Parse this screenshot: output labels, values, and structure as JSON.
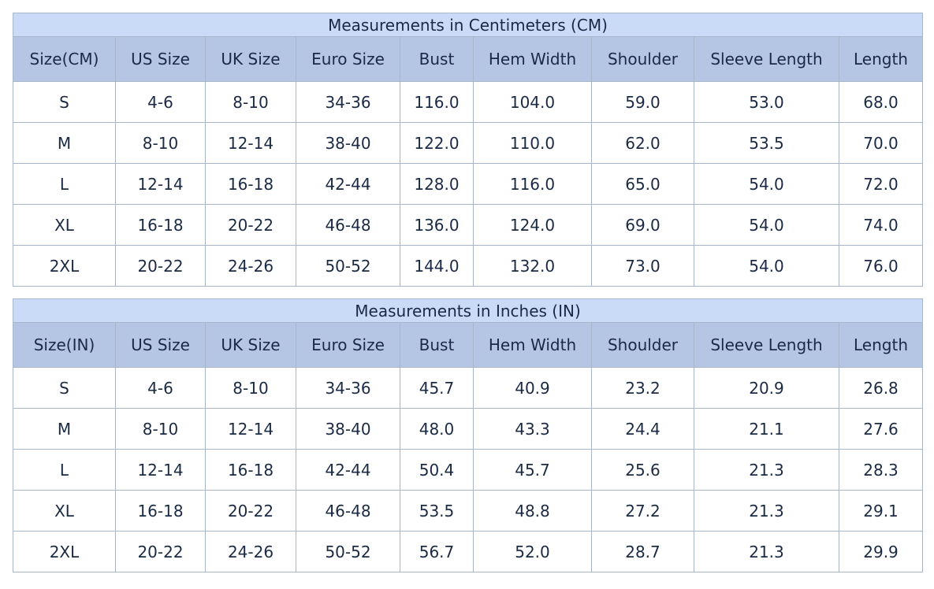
{
  "tables": [
    {
      "title": "Measurements in Centimeters (CM)",
      "headers": [
        "Size(CM)",
        "US Size",
        "UK Size",
        "Euro Size",
        "Bust",
        "Hem Width",
        "Shoulder",
        "Sleeve Length",
        "Length"
      ],
      "rows": [
        [
          "S",
          "4-6",
          "8-10",
          "34-36",
          "116.0",
          "104.0",
          "59.0",
          "53.0",
          "68.0"
        ],
        [
          "M",
          "8-10",
          "12-14",
          "38-40",
          "122.0",
          "110.0",
          "62.0",
          "53.5",
          "70.0"
        ],
        [
          "L",
          "12-14",
          "16-18",
          "42-44",
          "128.0",
          "116.0",
          "65.0",
          "54.0",
          "72.0"
        ],
        [
          "XL",
          "16-18",
          "20-22",
          "46-48",
          "136.0",
          "124.0",
          "69.0",
          "54.0",
          "74.0"
        ],
        [
          "2XL",
          "20-22",
          "24-26",
          "50-52",
          "144.0",
          "132.0",
          "73.0",
          "54.0",
          "76.0"
        ]
      ]
    },
    {
      "title": "Measurements in Inches (IN)",
      "headers": [
        "Size(IN)",
        "US Size",
        "UK Size",
        "Euro Size",
        "Bust",
        "Hem Width",
        "Shoulder",
        "Sleeve Length",
        "Length"
      ],
      "rows": [
        [
          "S",
          "4-6",
          "8-10",
          "34-36",
          "45.7",
          "40.9",
          "23.2",
          "20.9",
          "26.8"
        ],
        [
          "M",
          "8-10",
          "12-14",
          "38-40",
          "48.0",
          "43.3",
          "24.4",
          "21.1",
          "27.6"
        ],
        [
          "L",
          "12-14",
          "16-18",
          "42-44",
          "50.4",
          "45.7",
          "25.6",
          "21.3",
          "28.3"
        ],
        [
          "XL",
          "16-18",
          "20-22",
          "46-48",
          "53.5",
          "48.8",
          "27.2",
          "21.3",
          "29.1"
        ],
        [
          "2XL",
          "20-22",
          "24-26",
          "50-52",
          "56.7",
          "52.0",
          "28.7",
          "21.3",
          "29.9"
        ]
      ]
    }
  ]
}
